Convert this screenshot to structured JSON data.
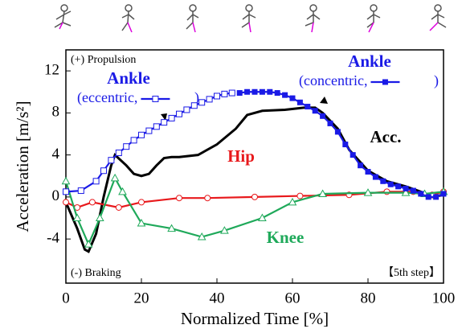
{
  "chart_data": {
    "type": "line",
    "xlabel": "Normalized Time [%]",
    "ylabel": "Acceleration [m/s²]",
    "xlim": [
      0,
      100
    ],
    "xticks": [
      0,
      20,
      40,
      60,
      80,
      100
    ],
    "ylim": [
      -8.2,
      14
    ],
    "yticks": [
      -4,
      0,
      4,
      8,
      12
    ],
    "annotations": [
      "(+) Propulsion",
      "(-) Braking",
      "【5th step】",
      "Ankle",
      "Ankle",
      ")",
      ")"
    ],
    "series": [
      {
        "name": "Acc.",
        "color": "#000000",
        "marker": "none",
        "x": [
          0,
          3,
          5,
          6,
          8,
          10,
          12,
          13,
          16,
          18,
          20,
          22,
          24,
          26,
          28,
          30,
          35,
          40,
          45,
          48,
          52,
          58,
          63,
          66,
          68,
          72,
          75,
          80,
          85,
          90,
          94,
          97,
          100
        ],
        "values": [
          -0.5,
          -3,
          -5,
          -5.2,
          -3.5,
          0,
          3,
          4,
          3,
          2.2,
          2,
          2.2,
          3,
          3.7,
          3.8,
          3.8,
          4,
          5,
          6.5,
          7.8,
          8.2,
          8.3,
          8.5,
          8.5,
          8,
          6.5,
          4.5,
          2.5,
          1.5,
          1,
          0.5,
          0,
          0.2
        ]
      },
      {
        "name": "Hip",
        "color": "#e8191c",
        "marker": "circle",
        "x": [
          0,
          3,
          7,
          14,
          20,
          30,
          37.5,
          50,
          62,
          75,
          85,
          92,
          97,
          100
        ],
        "values": [
          -0.5,
          -1,
          -0.5,
          -1,
          -0.5,
          -0.1,
          -0.1,
          0,
          0.1,
          0.2,
          0.5,
          0.5,
          0.2,
          0.5
        ]
      },
      {
        "name": "Knee",
        "color": "#1fa95a",
        "marker": "triangle",
        "x": [
          0,
          3,
          6,
          9,
          13,
          15,
          20,
          28,
          36,
          42,
          52,
          60,
          68,
          80,
          90,
          95,
          100
        ],
        "values": [
          1.5,
          -2,
          -4.5,
          -2,
          1.8,
          0.5,
          -2.5,
          -3,
          -3.8,
          -3.2,
          -2,
          -0.5,
          0.3,
          0.4,
          0.4,
          0.3,
          0.5
        ]
      },
      {
        "name": "(eccentric,",
        "color": "#1a1ae6",
        "marker": "square-open",
        "x": [
          0,
          4,
          8,
          10,
          12,
          14,
          16,
          18,
          20,
          22,
          24,
          26,
          28,
          30,
          32,
          34,
          36,
          38,
          40,
          42,
          44
        ],
        "values": [
          0.5,
          0.6,
          1.5,
          2.5,
          3.5,
          4.2,
          4.8,
          5.4,
          5.9,
          6.3,
          6.7,
          7.1,
          7.5,
          7.9,
          8.3,
          8.7,
          9,
          9.3,
          9.6,
          9.8,
          9.9
        ]
      },
      {
        "name": "(concentric,",
        "color": "#1a1ae6",
        "marker": "square",
        "x": [
          46,
          48,
          50,
          52,
          54,
          56,
          58,
          60,
          62,
          64,
          66,
          68,
          70,
          72,
          74,
          76,
          78,
          80,
          82,
          84,
          86,
          88,
          90,
          92,
          94,
          96,
          98,
          100
        ],
        "values": [
          9.9,
          10,
          10,
          10,
          10,
          9.9,
          9.7,
          9.4,
          9,
          8.6,
          8.2,
          7.7,
          7,
          6.2,
          5,
          4,
          3,
          2.4,
          1.9,
          1.5,
          1.2,
          1,
          0.8,
          0.6,
          0.3,
          0,
          0,
          0.3
        ]
      }
    ]
  }
}
